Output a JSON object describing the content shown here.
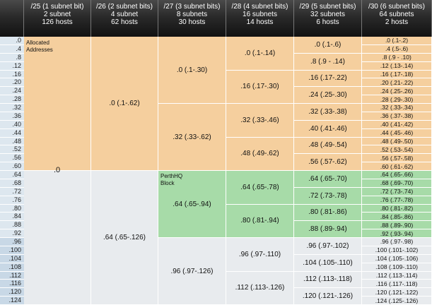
{
  "headers": [
    {
      "title": "/25 (1 subnet bit)",
      "subnets": "2 subnet",
      "hosts": "126 hosts"
    },
    {
      "title": "/26 (2 subnet bits)",
      "subnets": "4 subnet",
      "hosts": "62 hosts"
    },
    {
      "title": "/27 (3 subnet bits)",
      "subnets": "8 subnets",
      "hosts": "30 hosts"
    },
    {
      "title": "/28 (4 subnet bits)",
      "subnets": "16 subnets",
      "hosts": "14 hosts"
    },
    {
      "title": "/29 (5 subnet bits)",
      "subnets": "32 subnets",
      "hosts": "6 hosts"
    },
    {
      "title": "/30 (6 subnet bits)",
      "subnets": "64 subnets",
      "hosts": "2 hosts"
    }
  ],
  "row_labels": [
    ".0",
    ".4",
    ".8",
    ".12",
    ".16",
    ".20",
    ".24",
    ".28",
    ".32",
    ".36",
    ".40",
    ".44",
    ".48",
    ".52",
    ".56",
    ".60",
    ".64",
    ".68",
    ".72",
    ".76",
    ".80",
    ".84",
    ".88",
    ".92",
    ".96",
    ".100",
    ".104",
    ".108",
    ".112",
    ".116",
    ".120",
    ".124"
  ],
  "labels": {
    "allocated": "Allocated\nAddresses",
    "perthhq": "PerthHQ\nBlock"
  },
  "col25": [
    ".0"
  ],
  "col26": [
    ".0 (.1-.62)",
    ".64 (.65-.126)"
  ],
  "col27": [
    ".0 (.1-.30)",
    ".32 (.33-.62)",
    ".64 (.65-.94)",
    ".96 (.97-.126)"
  ],
  "col28": [
    ".0 (.1-.14)",
    ".16 (.17-.30)",
    ".32 (.33-.46)",
    ".48 (.49-.62)",
    ".64 (.65-.78)",
    ".80 (.81-.94)",
    ".96 (.97-.110)",
    ".112 (.113-.126)"
  ],
  "col29": [
    ".0 (.1-.6)",
    ".8 (.9 - .14)",
    ".16 (.17-.22)",
    ".24 (.25-.30)",
    ".32 (.33-.38)",
    ".40 (.41-.46)",
    ".48 (.49-.54)",
    ".56 (.57-.62)",
    ".64 (.65-.70)",
    ".72 (.73-.78)",
    ".80 (.81-.86)",
    ".88 (.89-.94)",
    ".96 (.97-.102)",
    ".104 (.105-.110)",
    ".112 (.113-.118)",
    ".120 (.121-.126)"
  ],
  "col30": [
    ".0 (.1-.2)",
    ".4 (.5-.6)",
    ".8 (.9 - .10)",
    ".12 (.13-.14)",
    ".16 (.17-.18)",
    ".20 (.21-.22)",
    ".24 (.25-.26)",
    ".28 (.29-.30)",
    ".32 (.33-.34)",
    ".36 (.37-.38)",
    ".40 (.41-.42)",
    ".44 (.45-.46)",
    ".48 (.49-.50)",
    ".52 (.53-.54)",
    ".56 (.57-.58)",
    ".60 (.61-.62)",
    ".64 (.65-.66)",
    ".68 (.69-.70)",
    ".72 (.73-.74)",
    ".76 (.77-.78)",
    ".80 (.81-.82)",
    ".84 (.85-.86)",
    ".88 (.89-.90)",
    ".92 (.93-.94)",
    ".96 (.97-.98)",
    ".100 (.101-.102)",
    ".104 (.105-.106)",
    ".108 (.109-.110)",
    ".112 (.113-.114)",
    ".116 (.117-.118)",
    ".120 (.121-.122)",
    ".124 (.125-.126)"
  ],
  "colors": {
    "allocated": "#f5cf9e",
    "perthhq": "#a7dba8",
    "unused": "#e8ebee",
    "header": "#2a2a2a"
  }
}
